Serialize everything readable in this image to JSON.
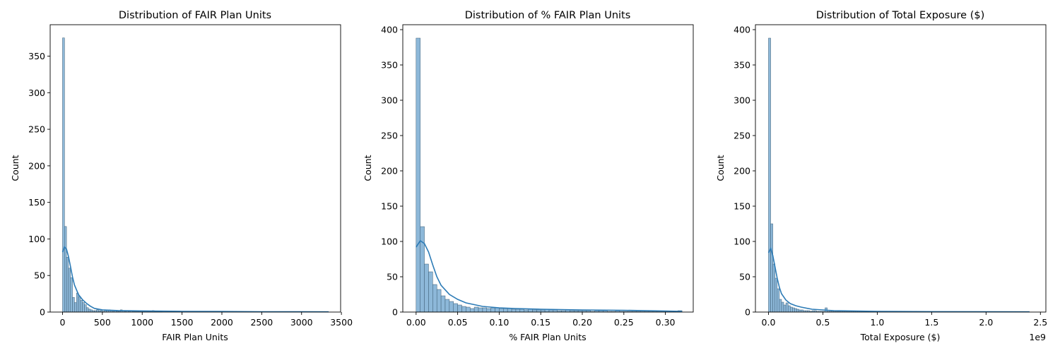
{
  "chart_data": [
    {
      "type": "bar",
      "title": "Distribution of FAIR Plan Units",
      "xlabel": "FAIR Plan Units",
      "ylabel": "Count",
      "xlim": [
        -155,
        3490
      ],
      "ylim": [
        0,
        393
      ],
      "xticks": [
        0,
        500,
        1000,
        1500,
        2000,
        2500,
        3000,
        3500
      ],
      "xtick_labels": [
        "0",
        "500",
        "1000",
        "1500",
        "2000",
        "2500",
        "3000",
        "3500"
      ],
      "yticks": [
        0,
        50,
        100,
        150,
        200,
        250,
        300,
        350
      ],
      "ytick_labels": [
        "0",
        "50",
        "100",
        "150",
        "200",
        "250",
        "300",
        "350"
      ],
      "x_offset_label": "",
      "bin_width": 25,
      "bins_start": 0,
      "counts": [
        375,
        117,
        75,
        60,
        47,
        20,
        13,
        26,
        21,
        16,
        13,
        10,
        6,
        4,
        3,
        2,
        2,
        3,
        2,
        2,
        1,
        2,
        2,
        3,
        2,
        1,
        2,
        1,
        1,
        3,
        2,
        1,
        2,
        1,
        2,
        1,
        1,
        1,
        1,
        1,
        1,
        1,
        1,
        1,
        1,
        2,
        1,
        1,
        1,
        1
      ],
      "kde": {
        "x": [
          0,
          25,
          50,
          75,
          100,
          125,
          150,
          200,
          250,
          300,
          350,
          400,
          500,
          700,
          1000,
          1500,
          2000,
          2500,
          3000,
          3340
        ],
        "y": [
          82,
          89,
          86,
          76,
          62,
          48,
          37,
          24,
          17,
          12,
          8,
          5,
          3,
          2,
          1.5,
          1,
          0.8,
          0.5,
          0.4,
          0.3
        ]
      },
      "bar_color": "#8db8d9",
      "bar_edge": "#3c5c74",
      "kde_color": "#2c7bb6"
    },
    {
      "type": "bar",
      "title": "Distribution of % FAIR Plan Units",
      "xlabel": "% FAIR Plan Units",
      "ylabel": "Count",
      "xlim": [
        -0.016,
        0.3335
      ],
      "ylim": [
        0,
        407
      ],
      "xticks": [
        0,
        0.05,
        0.1,
        0.15,
        0.2,
        0.25,
        0.3
      ],
      "xtick_labels": [
        "0.00",
        "0.05",
        "0.10",
        "0.15",
        "0.20",
        "0.25",
        "0.30"
      ],
      "yticks": [
        0,
        50,
        100,
        150,
        200,
        250,
        300,
        350,
        400
      ],
      "ytick_labels": [
        "0",
        "50",
        "100",
        "150",
        "200",
        "250",
        "300",
        "350",
        "400"
      ],
      "x_offset_label": "",
      "bin_width": 0.005,
      "bins_start": 0,
      "counts": [
        388,
        121,
        68,
        57,
        39,
        32,
        23,
        18,
        15,
        12,
        10,
        8,
        7,
        5,
        7,
        6,
        6,
        5,
        6,
        6,
        5,
        5,
        5,
        4,
        4,
        4,
        3,
        4,
        3,
        3,
        3,
        4,
        3,
        3,
        2,
        2,
        3,
        2,
        2,
        2,
        2,
        2,
        1,
        2,
        2,
        2,
        1,
        1,
        2,
        1,
        1,
        1,
        1,
        1,
        1,
        1,
        1,
        1,
        1,
        1,
        1,
        1,
        1,
        2
      ],
      "kde": {
        "x": [
          0,
          0.005,
          0.01,
          0.015,
          0.02,
          0.025,
          0.03,
          0.04,
          0.05,
          0.06,
          0.08,
          0.1,
          0.12,
          0.15,
          0.2,
          0.25,
          0.3,
          0.32
        ],
        "y": [
          92,
          101,
          97,
          85,
          67,
          50,
          38,
          25,
          18,
          13,
          8,
          6,
          5,
          4,
          3,
          2.5,
          1.5,
          1
        ]
      },
      "bar_color": "#8db8d9",
      "bar_edge": "#3c5c74",
      "kde_color": "#2c7bb6"
    },
    {
      "type": "bar",
      "title": "Distribution of Total Exposure ($)",
      "xlabel": "Total Exposure ($)",
      "ylabel": "Count",
      "xlim": [
        -0.12,
        2.55
      ],
      "ylim": [
        0,
        407
      ],
      "xticks": [
        0,
        0.5,
        1,
        1.5,
        2,
        2.5
      ],
      "xtick_labels": [
        "0.0",
        "0.5",
        "1.0",
        "1.5",
        "2.0",
        "2.5"
      ],
      "yticks": [
        0,
        50,
        100,
        150,
        200,
        250,
        300,
        350,
        400
      ],
      "ytick_labels": [
        "0",
        "50",
        "100",
        "150",
        "200",
        "250",
        "300",
        "350",
        "400"
      ],
      "x_offset_label": "1e9",
      "bin_width": 0.02,
      "bins_start": 0,
      "counts": [
        388,
        125,
        68,
        48,
        33,
        18,
        14,
        10,
        13,
        9,
        7,
        6,
        5,
        4,
        3,
        3,
        2,
        2,
        2,
        1,
        2,
        2,
        1,
        1,
        1,
        1,
        6,
        1,
        1,
        1,
        1,
        1,
        1,
        1,
        1,
        1,
        1,
        1,
        1,
        1,
        1,
        1,
        1,
        1,
        1,
        1,
        1,
        1,
        1,
        1
      ],
      "kde": {
        "x": [
          0,
          0.02,
          0.04,
          0.06,
          0.08,
          0.1,
          0.12,
          0.16,
          0.2,
          0.25,
          0.3,
          0.4,
          0.5,
          0.6,
          0.8,
          1.0,
          1.5,
          2.0,
          2.4
        ],
        "y": [
          84,
          90,
          80,
          64,
          48,
          35,
          26,
          17,
          12,
          9,
          7,
          4,
          3,
          2,
          1.5,
          1,
          0.6,
          0.4,
          0.3
        ]
      },
      "bar_color": "#8db8d9",
      "bar_edge": "#3c5c74",
      "kde_color": "#2c7bb6"
    }
  ]
}
